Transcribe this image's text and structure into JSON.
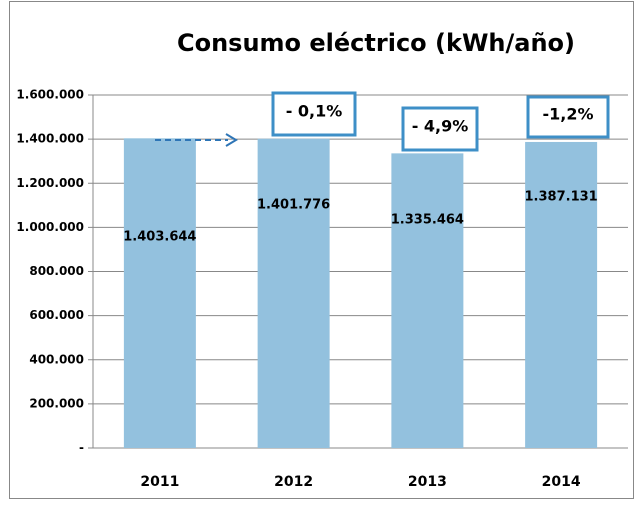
{
  "chart_data": {
    "type": "bar",
    "title": "Consumo eléctrico (kWh/año)",
    "categories": [
      "2011",
      "2012",
      "2013",
      "2014"
    ],
    "values": [
      1403644,
      1401776,
      1335464,
      1387131
    ],
    "value_labels": [
      "1.403.644",
      "1.401.776",
      "1.335.464",
      "1.387.131"
    ],
    "color": "#93c1de",
    "annotations": [
      "- 0,1%",
      "- 4,9%",
      "-1,2%"
    ],
    "ylim": [
      0,
      1600000
    ],
    "yticks": [
      {
        "value": 0,
        "label": "-"
      },
      {
        "value": 200000,
        "label": "200.000"
      },
      {
        "value": 400000,
        "label": "400.000"
      },
      {
        "value": 600000,
        "label": "600.000"
      },
      {
        "value": 800000,
        "label": "800.000"
      },
      {
        "value": 1000000,
        "label": "1.000.000"
      },
      {
        "value": 1200000,
        "label": "1.200.000"
      },
      {
        "value": 1400000,
        "label": "1.400.000"
      },
      {
        "value": 1600000,
        "label": "1.600.000"
      }
    ],
    "grid": true
  }
}
